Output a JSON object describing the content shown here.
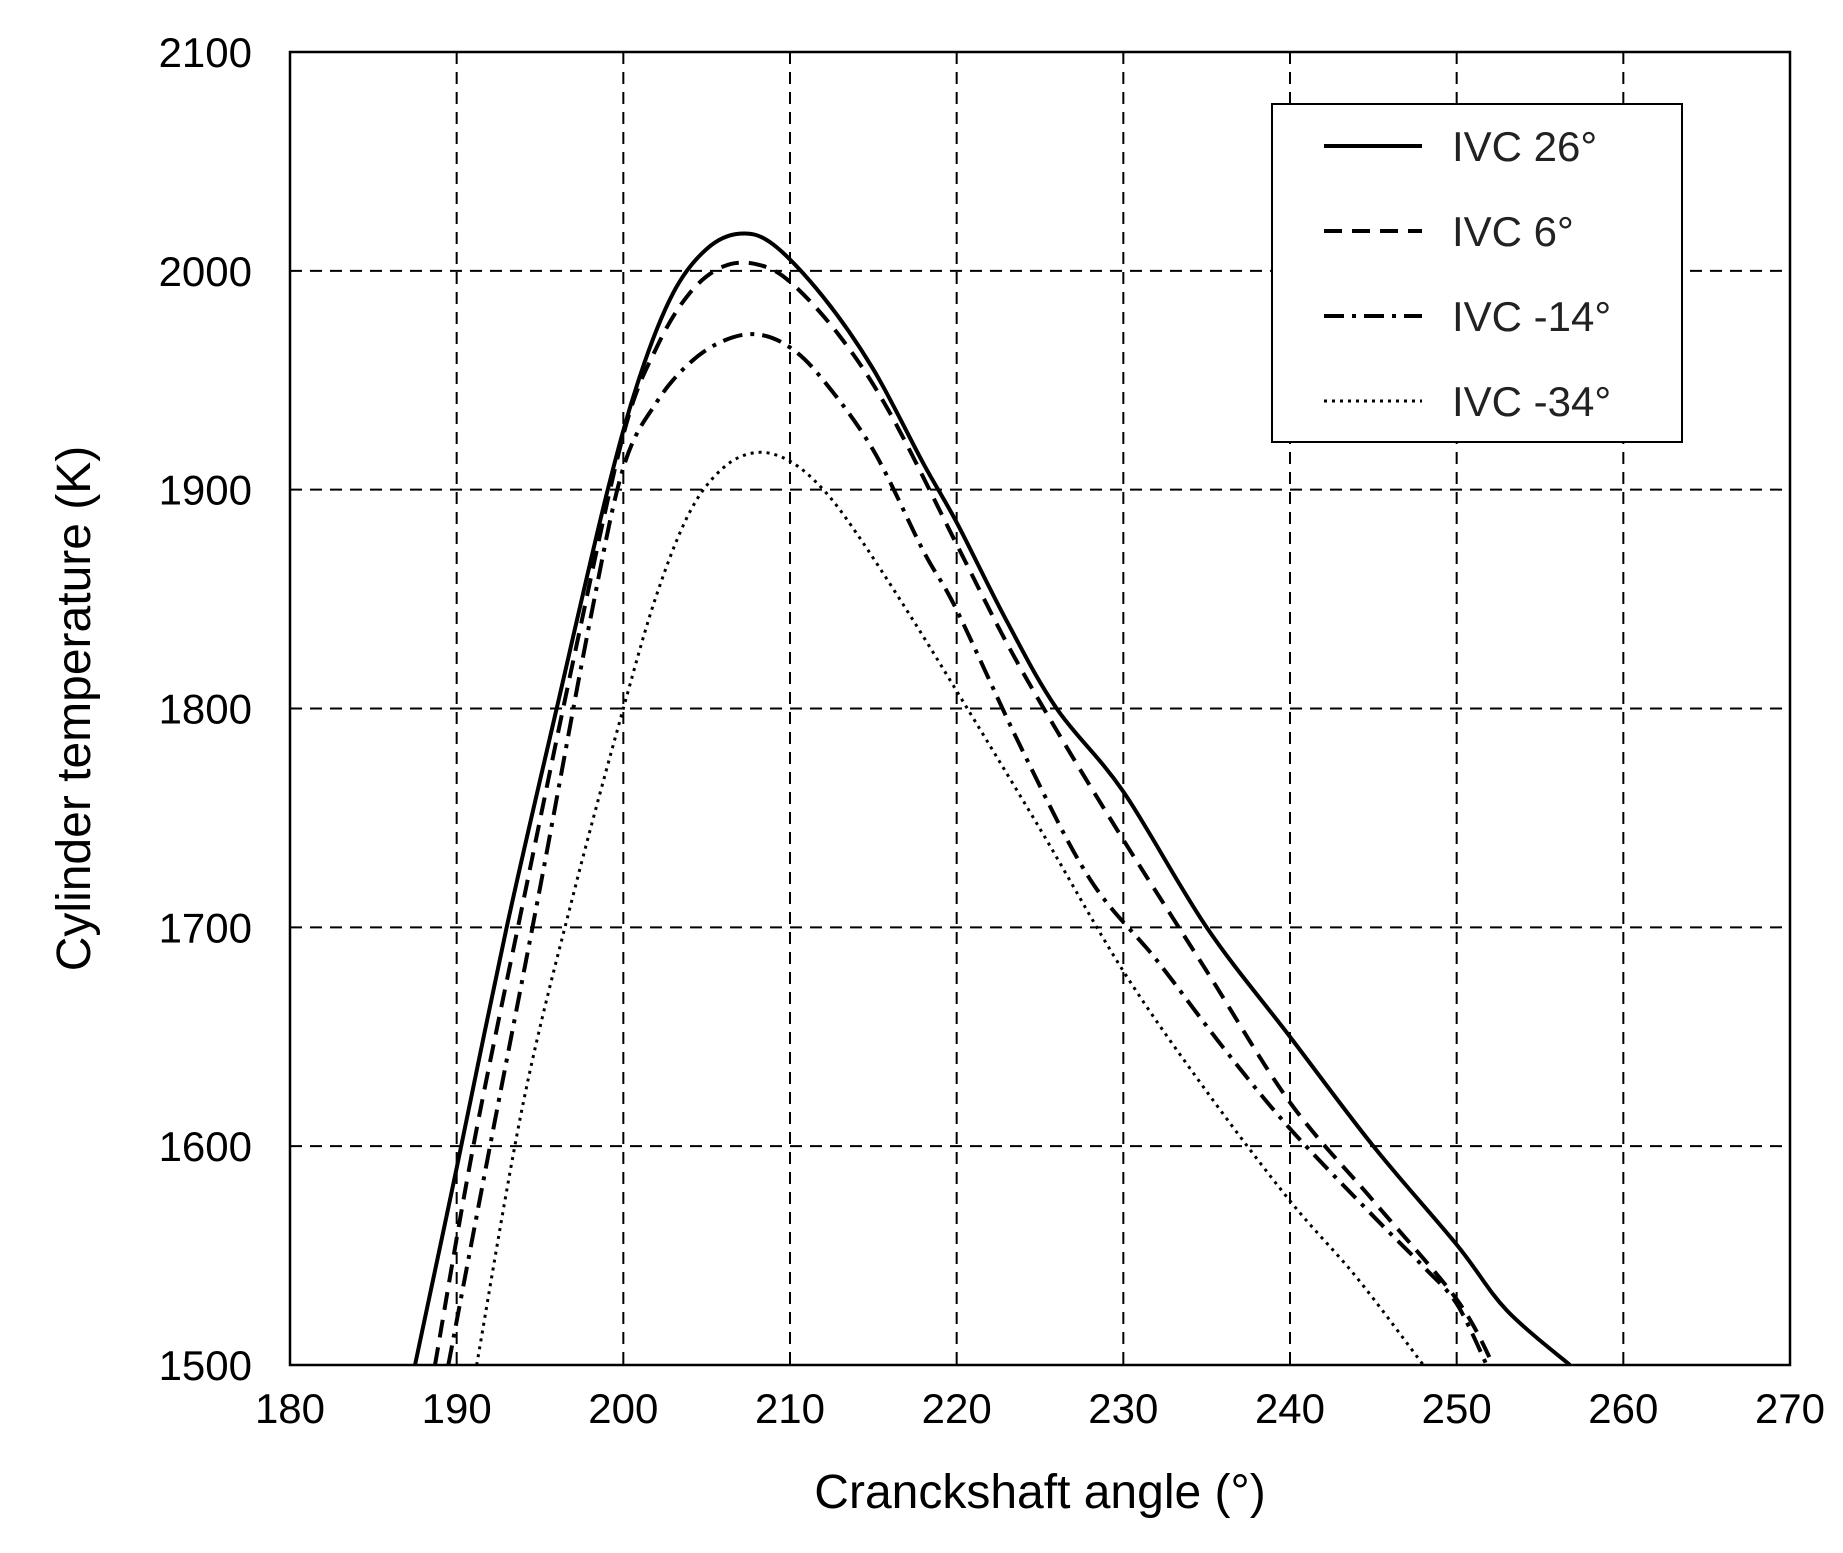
{
  "chart_data": {
    "type": "line",
    "xlabel": "Cranckshaft angle (°)",
    "ylabel": "Cylinder temperature (K)",
    "xlim": [
      180,
      270
    ],
    "ylim": [
      1500,
      2100
    ],
    "xticks": [
      "180",
      "190",
      "200",
      "210",
      "220",
      "230",
      "240",
      "250",
      "260",
      "270"
    ],
    "yticks": [
      "1500",
      "1600",
      "1700",
      "1800",
      "1900",
      "2000",
      "2100"
    ],
    "grid": true,
    "legend_position": "top-right",
    "series": [
      {
        "name": "IVC 26°",
        "line_style": "solid",
        "x": [
          187.5,
          190,
          193,
          196,
          199,
          201,
          203,
          205,
          207,
          209,
          212,
          215,
          218,
          220,
          223,
          226,
          230,
          235,
          240,
          245,
          250,
          253,
          256.8
        ],
        "y": [
          1500,
          1590,
          1700,
          1800,
          1898,
          1952,
          1990,
          2010,
          2017,
          2012,
          1988,
          1955,
          1912,
          1885,
          1840,
          1800,
          1762,
          1700,
          1650,
          1600,
          1555,
          1525,
          1500
        ]
      },
      {
        "name": "IVC 6°",
        "line_style": "dashed",
        "x": [
          188.7,
          191,
          194,
          197,
          200,
          202,
          204,
          206,
          208,
          210,
          213,
          216,
          220,
          223,
          226,
          230,
          235,
          240,
          245,
          250,
          252.2
        ],
        "y": [
          1500,
          1600,
          1712,
          1822,
          1925,
          1965,
          1990,
          2002,
          2003,
          1995,
          1970,
          1935,
          1875,
          1830,
          1790,
          1740,
          1680,
          1620,
          1575,
          1530,
          1500
        ]
      },
      {
        "name": "IVC -14°",
        "line_style": "dash-dot",
        "x": [
          189.5,
          192,
          195,
          198,
          200,
          202,
          204,
          206,
          208,
          210,
          212,
          215,
          218,
          220,
          224,
          228,
          232,
          236,
          240,
          245,
          248,
          250,
          251.8
        ],
        "y": [
          1500,
          1600,
          1718,
          1840,
          1910,
          1940,
          1958,
          1968,
          1971,
          1965,
          1950,
          1918,
          1872,
          1845,
          1780,
          1722,
          1685,
          1645,
          1608,
          1568,
          1545,
          1528,
          1500
        ]
      },
      {
        "name": "IVC -34°",
        "line_style": "dotted",
        "x": [
          191.2,
          194,
          197,
          200,
          202,
          204,
          206,
          208,
          210,
          212,
          214,
          217,
          220,
          225,
          230,
          235,
          240,
          244,
          248
        ],
        "y": [
          1500,
          1620,
          1715,
          1800,
          1852,
          1890,
          1910,
          1917,
          1913,
          1900,
          1880,
          1845,
          1808,
          1745,
          1680,
          1625,
          1575,
          1540,
          1500
        ]
      }
    ]
  }
}
